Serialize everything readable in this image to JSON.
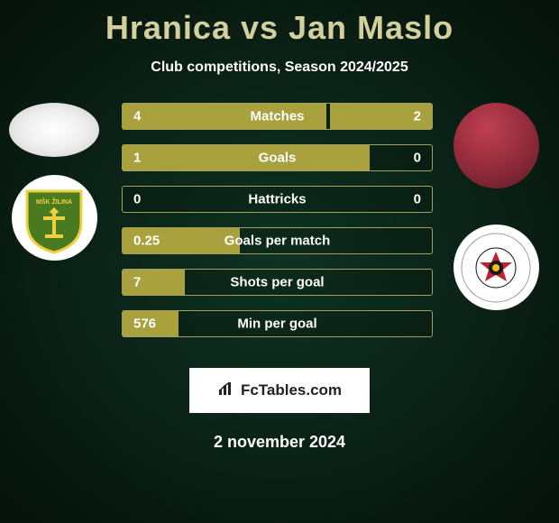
{
  "title": "Hranica vs Jan Maslo",
  "subtitle": "Club competitions, Season 2024/2025",
  "date": "2 november 2024",
  "fctables_label": "FcTables.com",
  "colors": {
    "accent": "#a9a03e",
    "title_color": "#d4cf9e",
    "bar_border": "#a0a060",
    "bg_center": "#0e3321",
    "bg_outer": "#051109"
  },
  "stat_rows": [
    {
      "label": "Matches",
      "left_val": "4",
      "right_val": "2",
      "left_pct": 66,
      "right_pct": 33
    },
    {
      "label": "Goals",
      "left_val": "1",
      "right_val": "0",
      "left_pct": 80,
      "right_pct": 0
    },
    {
      "label": "Hattricks",
      "left_val": "0",
      "right_val": "0",
      "left_pct": 0,
      "right_pct": 0
    },
    {
      "label": "Goals per match",
      "left_val": "0.25",
      "right_val": "",
      "left_pct": 38,
      "right_pct": 0
    },
    {
      "label": "Shots per goal",
      "left_val": "7",
      "right_val": "",
      "left_pct": 20,
      "right_pct": 0
    },
    {
      "label": "Min per goal",
      "left_val": "576",
      "right_val": "",
      "left_pct": 18,
      "right_pct": 0
    }
  ],
  "left_player": {
    "name": "Hranica",
    "club": "MŠK Žilina"
  },
  "right_player": {
    "name": "Jan Maslo",
    "club": "MFK Ružomberok"
  },
  "zilina_badge": {
    "bg": "#4a7a1f",
    "border": "#f0d040",
    "text": "MŠK ŽILINA"
  },
  "ruzom_badge": {
    "bg": "#ffffff",
    "circle": "#c02030",
    "dark": "#1a1a1a"
  }
}
